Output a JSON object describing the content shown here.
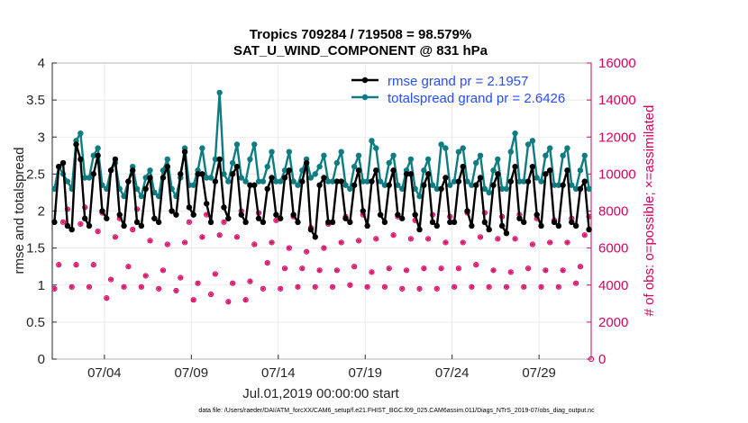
{
  "chart_data": {
    "type": "line",
    "title_line1": "Tropics 709284 / 719508 = 98.579%",
    "title_line2": "SAT_U_WIND_COMPONENT @ 831 hPa",
    "xlabel": "Jul.01,2019 00:00:00 start",
    "ylabel": "rmse and totalspread",
    "ylabel_right": "# of obs: o=possible; ×=assimilated",
    "x_tick_labels": [
      "07/04",
      "07/09",
      "07/14",
      "07/19",
      "07/24",
      "07/29"
    ],
    "x_tick_days": [
      4,
      9,
      14,
      19,
      24,
      29
    ],
    "xlim_days": [
      1,
      32
    ],
    "points_per_day": 4,
    "ylim": [
      0,
      4
    ],
    "y_ticks": [
      "0",
      "0.5",
      "1",
      "1.5",
      "2",
      "2.5",
      "3",
      "3.5",
      "4"
    ],
    "y_tick_values": [
      0,
      0.5,
      1,
      1.5,
      2,
      2.5,
      3,
      3.5,
      4
    ],
    "ylim_right": [
      0,
      16000
    ],
    "y_ticks_right": [
      "0",
      "2000",
      "4000",
      "6000",
      "8000",
      "10000",
      "12000",
      "14000",
      "16000"
    ],
    "y_tick_values_right": [
      0,
      2000,
      4000,
      6000,
      8000,
      10000,
      12000,
      14000,
      16000
    ],
    "legend": {
      "rmse_label": "rmse grand pr = 2.1957",
      "spread_label": "totalspread grand pr = 2.6426"
    },
    "series": [
      {
        "name": "rmse",
        "color": "#000000",
        "values": [
          1.85,
          2.6,
          2.65,
          1.8,
          1.75,
          2.9,
          2.7,
          1.9,
          1.8,
          2.5,
          2.75,
          2.0,
          1.9,
          2.55,
          2.7,
          1.95,
          1.8,
          2.4,
          2.55,
          1.85,
          1.8,
          2.3,
          2.45,
          1.9,
          1.85,
          2.45,
          2.6,
          2.0,
          1.95,
          2.5,
          2.8,
          2.05,
          1.95,
          2.5,
          2.5,
          2.1,
          1.85,
          2.4,
          2.7,
          2.05,
          1.9,
          2.5,
          2.6,
          1.95,
          1.85,
          2.35,
          2.35,
          1.9,
          1.85,
          2.3,
          2.45,
          1.95,
          1.9,
          2.45,
          2.55,
          1.95,
          1.85,
          2.4,
          2.65,
          1.75,
          1.65,
          2.35,
          2.45,
          1.85,
          1.85,
          2.4,
          2.4,
          1.9,
          1.85,
          2.35,
          2.55,
          2.0,
          1.8,
          2.4,
          2.55,
          1.95,
          1.85,
          2.35,
          2.55,
          1.95,
          1.9,
          2.5,
          2.5,
          1.95,
          1.75,
          2.35,
          2.5,
          1.85,
          1.8,
          2.3,
          2.45,
          1.85,
          1.85,
          2.4,
          2.6,
          2.0,
          1.8,
          2.35,
          2.45,
          1.85,
          1.75,
          2.35,
          2.5,
          1.8,
          1.7,
          2.4,
          2.6,
          1.9,
          1.85,
          2.4,
          2.6,
          1.95,
          1.8,
          2.5,
          2.55,
          1.85,
          1.8,
          2.35,
          2.55,
          1.85,
          1.8,
          2.3,
          2.4,
          1.75,
          1.95,
          2.2,
          2.2,
          1.95
        ],
        "sample_labeled_values": [
          1.85,
          2.9,
          2.8,
          1.65,
          1.7
        ]
      },
      {
        "name": "totalspread",
        "color": "#0e7c80",
        "values": [
          2.3,
          2.6,
          2.5,
          2.4,
          2.3,
          2.95,
          3.05,
          2.45,
          2.45,
          2.75,
          2.85,
          2.35,
          2.3,
          2.55,
          2.65,
          2.3,
          2.2,
          2.4,
          2.6,
          2.3,
          2.2,
          2.45,
          2.55,
          2.25,
          2.2,
          2.55,
          2.7,
          2.3,
          2.2,
          2.45,
          2.85,
          2.35,
          2.35,
          2.55,
          2.85,
          2.45,
          2.45,
          2.7,
          3.6,
          2.5,
          2.4,
          2.65,
          2.9,
          2.45,
          2.4,
          2.7,
          2.9,
          2.4,
          2.4,
          2.6,
          2.8,
          2.4,
          2.4,
          2.55,
          2.8,
          2.4,
          2.35,
          2.55,
          2.7,
          2.45,
          2.5,
          2.6,
          2.75,
          2.4,
          2.4,
          2.65,
          2.8,
          2.35,
          2.3,
          2.6,
          2.75,
          2.4,
          2.4,
          2.95,
          2.85,
          2.4,
          2.35,
          2.65,
          2.75,
          2.35,
          2.3,
          2.55,
          2.7,
          2.3,
          2.2,
          2.55,
          2.7,
          2.35,
          2.3,
          2.9,
          2.85,
          2.35,
          2.4,
          2.8,
          2.85,
          2.4,
          2.35,
          2.65,
          2.75,
          2.3,
          2.25,
          2.55,
          2.7,
          2.3,
          2.3,
          2.8,
          3.05,
          2.4,
          2.4,
          2.9,
          2.95,
          2.45,
          2.4,
          2.75,
          2.85,
          2.35,
          2.35,
          2.75,
          2.85,
          2.35,
          2.3,
          2.55,
          2.75,
          2.3,
          2.35,
          2.55,
          2.65,
          2.3
        ],
        "sample_labeled_values": [
          3.05,
          3.6
        ]
      },
      {
        "name": "obs_possible",
        "axis": "right",
        "color": "#d6005f",
        "values": [
          3800,
          5100,
          7400,
          8100,
          3900,
          5100,
          7300,
          8200,
          3900,
          5100,
          6900,
          7900,
          3300,
          4300,
          6600,
          7600,
          3900,
          5000,
          7000,
          8100,
          3900,
          4500,
          6400,
          7600,
          3800,
          4800,
          6200,
          8000,
          3700,
          4400,
          6300,
          7400,
          3200,
          4100,
          6600,
          7800,
          3500,
          4600,
          6700,
          7400,
          3100,
          4100,
          6600,
          8000,
          3200,
          4200,
          6200,
          7900,
          3800,
          5200,
          6300,
          7500,
          3800,
          4900,
          6000,
          7700,
          3900,
          4900,
          5800,
          7100,
          3900,
          4800,
          6000,
          7300,
          3900,
          4800,
          6300,
          7700,
          4000,
          5000,
          6400,
          7800,
          3900,
          4700,
          6500,
          7800,
          3900,
          4900,
          6700,
          7700,
          3800,
          4800,
          6500,
          7500,
          3800,
          4900,
          6500,
          7800,
          3800,
          4900,
          6300,
          7700,
          3900,
          4900,
          6300,
          7900,
          3900,
          5100,
          6600,
          7900,
          3900,
          4800,
          6500,
          7700,
          3900,
          4700,
          6500,
          7800,
          3900,
          4900,
          6200,
          7600,
          3900,
          4800,
          6300,
          7500,
          3900,
          4800,
          6300,
          7600,
          4100,
          5000,
          6700,
          7700,
          4100,
          4800,
          6500,
          7800
        ],
        "last_value": 0
      }
    ]
  },
  "footer": {
    "data_file": "data file: /Users/raeder/DAI/ATM_forcXX/CAM6_setup/f.e21.FHIST_BGC.f09_025.CAM6assim.011/Diags_NTrS_2019-07/obs_diag_output.nc"
  }
}
